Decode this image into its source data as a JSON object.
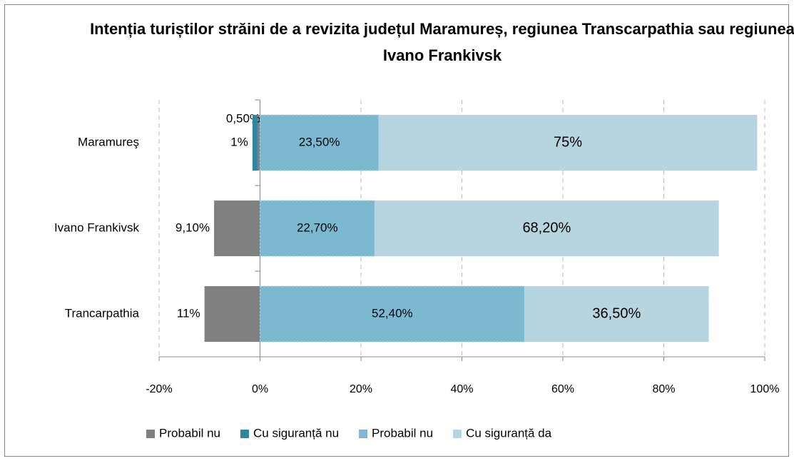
{
  "chart_data": {
    "type": "diverging_stacked_bar",
    "orientation": "horizontal",
    "title": "Intenția turiștilor străini de a revizita județul Maramureș, regiunea Transcarpathia sau regiunea Ivano Frankivsk",
    "categories": [
      "Maramureş",
      "Ivano Frankivsk",
      "Trancarpathia"
    ],
    "series": [
      {
        "name": "Probabil nu",
        "color": "#808080",
        "values": [
          -0.5,
          -9.1,
          -11
        ],
        "value_labels": [
          "0,50%",
          "9,10%",
          "11%"
        ]
      },
      {
        "name": "Cu siguranță nu",
        "color": "#31859c",
        "values": [
          -1,
          0,
          0
        ],
        "value_labels": [
          "1%",
          null,
          null
        ]
      },
      {
        "name": "Probabil nu",
        "color": "#7ab9d0",
        "values": [
          23.5,
          22.7,
          52.4
        ],
        "value_labels": [
          "23,50%",
          "22,70%",
          "52,40%"
        ]
      },
      {
        "name": "Cu siguranță da",
        "color": "#b7d5e0",
        "values": [
          75,
          68.2,
          36.5
        ],
        "value_labels": [
          "75%",
          "68,20%",
          "36,50%"
        ]
      }
    ],
    "xlim": [
      -20,
      100
    ],
    "xticks": [
      {
        "value": -20,
        "label": "-20%"
      },
      {
        "value": 0,
        "label": "0%"
      },
      {
        "value": 20,
        "label": "20%"
      },
      {
        "value": 40,
        "label": "40%"
      },
      {
        "value": 60,
        "label": "60%"
      },
      {
        "value": 80,
        "label": "80%"
      },
      {
        "value": 100,
        "label": "100%"
      }
    ],
    "grid": true,
    "legend": "bottom"
  }
}
